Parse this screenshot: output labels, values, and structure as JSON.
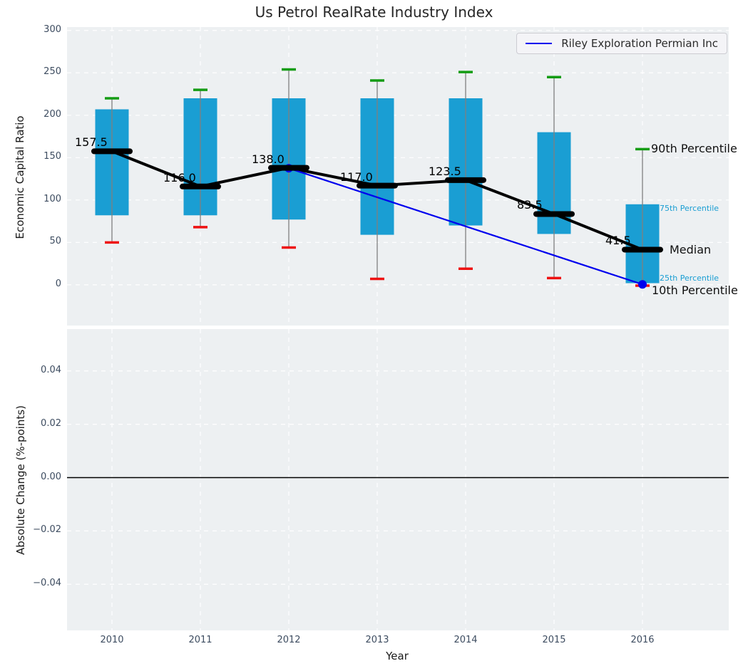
{
  "title": "Us Petrol RealRate Industry Index",
  "legend": {
    "label": "Riley Exploration Permian Inc"
  },
  "colors": {
    "plot_bg": "#edf0f2",
    "grid": "#ffffff",
    "box_fill": "#1a9ed3",
    "median": "#000000",
    "whisker": "#7f7f7f",
    "cap_high": "#149c14",
    "cap_low": "#ee1111",
    "overlay_line": "#0000ee",
    "tick_text": "#3d4c60",
    "cyan_label": "#1a9ed3",
    "zero_line": "#000000"
  },
  "chart_data": [
    {
      "type": "boxplot",
      "title": "Us Petrol RealRate Industry Index",
      "xlabel": "Year",
      "ylabel": "Economic Capital Ratio",
      "categories": [
        "2010",
        "2011",
        "2012",
        "2013",
        "2014",
        "2015",
        "2016"
      ],
      "ytick_labels": [
        "0",
        "50",
        "100",
        "150",
        "200",
        "250",
        "300"
      ],
      "yticks": [
        0,
        50,
        100,
        150,
        200,
        250,
        300
      ],
      "ylim": [
        -48,
        304
      ],
      "grid": true,
      "legend_position": "upper right",
      "series": [
        {
          "name": "90th Percentile",
          "role": "p90",
          "values": [
            220,
            230,
            254,
            241,
            251,
            245,
            160
          ]
        },
        {
          "name": "75th Percentile",
          "role": "q3",
          "values": [
            207,
            220,
            220,
            220,
            220,
            180,
            95
          ]
        },
        {
          "name": "Median",
          "role": "median",
          "values": [
            157.5,
            116.0,
            138.0,
            117.0,
            123.5,
            83.5,
            41.5
          ]
        },
        {
          "name": "25th Percentile",
          "role": "q1",
          "values": [
            82,
            82,
            77,
            59,
            70,
            60,
            2
          ]
        },
        {
          "name": "10th Percentile",
          "role": "p10",
          "values": [
            50,
            68,
            44,
            7,
            19,
            8,
            -1
          ]
        }
      ],
      "median_labels": [
        "157.5",
        "116.0",
        "138.0",
        "117.0",
        "123.5",
        "83.5",
        "41.5"
      ],
      "overlay_series": {
        "name": "Riley Exploration Permian Inc",
        "points": [
          {
            "x": "2012",
            "y": 137.5
          },
          {
            "x": "2016",
            "y": 0.5
          }
        ]
      },
      "annotations": [
        {
          "text": "90th Percentile",
          "style": "big",
          "anchor_role": "p90"
        },
        {
          "text": "75th Percentile",
          "style": "small",
          "anchor_role": "q3"
        },
        {
          "text": "Median",
          "style": "big",
          "anchor_role": "median"
        },
        {
          "text": "25th Percentile",
          "style": "small",
          "anchor_role": "q1"
        },
        {
          "text": "10th Percentile",
          "style": "big",
          "anchor_role": "p10"
        }
      ]
    },
    {
      "type": "line",
      "xlabel": "Year",
      "ylabel": "Absolute Change (%-points)",
      "categories": [
        "2010",
        "2011",
        "2012",
        "2013",
        "2014",
        "2015",
        "2016"
      ],
      "ytick_labels": [
        "0.04",
        "0.02",
        "0.00",
        "−0.02",
        "−0.04"
      ],
      "yticks": [
        0.04,
        0.02,
        0.0,
        -0.02,
        -0.04
      ],
      "ylim": [
        -0.0573,
        0.0557
      ],
      "grid": true,
      "zero_line": 0.0,
      "series": []
    }
  ]
}
